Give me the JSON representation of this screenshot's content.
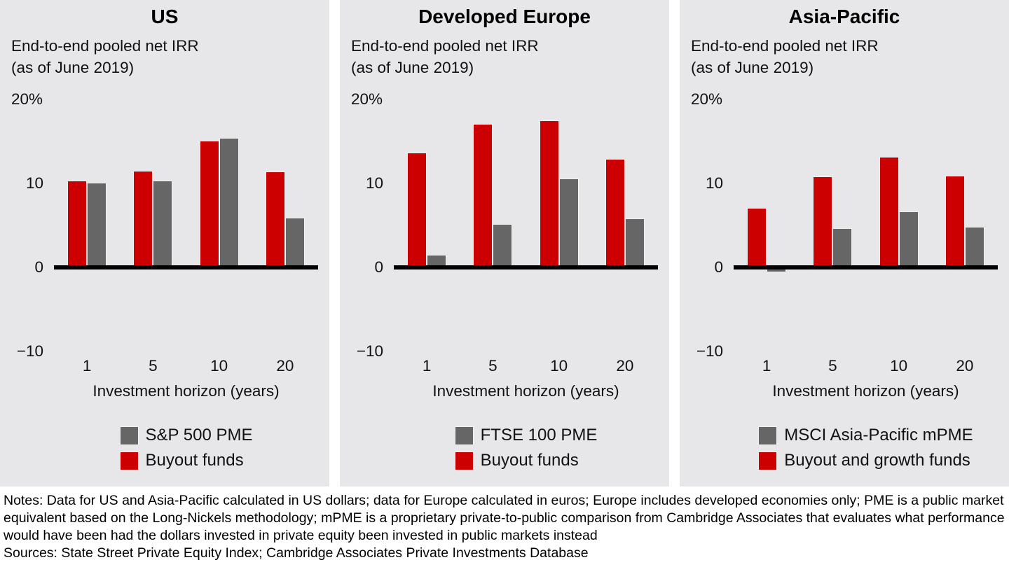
{
  "colors": {
    "buyout_red": "#cc0000",
    "pme_gray": "#666666",
    "panel_bg": "#e7e7e9",
    "axis_black": "#000000",
    "page_bg": "#ffffff"
  },
  "chart_data": [
    {
      "type": "bar",
      "title": "US",
      "subtitle": "End-to-end pooled net IRR\n(as of June 2019)",
      "xlabel": "Investment horizon (years)",
      "categories": [
        "1",
        "5",
        "10",
        "20"
      ],
      "series": [
        {
          "name": "Buyout funds",
          "color": "#cc0000",
          "values": [
            10.3,
            11.5,
            15.1,
            11.4
          ]
        },
        {
          "name": "S&P 500 PME",
          "color": "#666666",
          "values": [
            10.1,
            10.3,
            15.4,
            5.9
          ]
        }
      ],
      "legend": [
        {
          "label": "S&P 500 PME",
          "color": "#666666"
        },
        {
          "label": "Buyout funds",
          "color": "#cc0000"
        }
      ],
      "ylim": [
        -10,
        20
      ],
      "yticks": [
        20,
        10,
        0,
        -10
      ],
      "ytick_labels": [
        "20%",
        "10",
        "0",
        "−10"
      ],
      "grid": false,
      "legend_position": "bottom-center"
    },
    {
      "type": "bar",
      "title": "Developed Europe",
      "subtitle": "End-to-end pooled net IRR\n(as of June 2019)",
      "xlabel": "Investment horizon (years)",
      "categories": [
        "1",
        "5",
        "10",
        "20"
      ],
      "series": [
        {
          "name": "Buyout funds",
          "color": "#cc0000",
          "values": [
            13.7,
            17.1,
            17.5,
            12.9
          ]
        },
        {
          "name": "FTSE 100 PME",
          "color": "#666666",
          "values": [
            1.5,
            5.2,
            10.6,
            5.8
          ]
        }
      ],
      "legend": [
        {
          "label": "FTSE 100 PME",
          "color": "#666666"
        },
        {
          "label": "Buyout funds",
          "color": "#cc0000"
        }
      ],
      "ylim": [
        -10,
        20
      ],
      "yticks": [
        20,
        10,
        0,
        -10
      ],
      "ytick_labels": [
        "20%",
        "10",
        "0",
        "−10"
      ],
      "grid": false,
      "legend_position": "bottom-center"
    },
    {
      "type": "bar",
      "title": "Asia-Pacific",
      "subtitle": "End-to-end pooled net IRR\n(as of June 2019)",
      "xlabel": "Investment horizon (years)",
      "categories": [
        "1",
        "5",
        "10",
        "20"
      ],
      "series": [
        {
          "name": "Buyout and growth funds",
          "color": "#cc0000",
          "values": [
            7.1,
            10.8,
            13.2,
            10.9
          ]
        },
        {
          "name": "MSCI Asia-Pacific mPME",
          "color": "#666666",
          "values": [
            -0.6,
            4.7,
            6.7,
            4.8
          ]
        }
      ],
      "legend": [
        {
          "label": "MSCI Asia-Pacific mPME",
          "color": "#666666"
        },
        {
          "label": "Buyout and growth funds",
          "color": "#cc0000"
        }
      ],
      "ylim": [
        -10,
        20
      ],
      "yticks": [
        20,
        10,
        0,
        -10
      ],
      "ytick_labels": [
        "20%",
        "10",
        "0",
        "−10"
      ],
      "grid": false,
      "legend_position": "bottom-center"
    }
  ],
  "notes": "Notes: Data for US and Asia-Pacific calculated in US dollars; data for Europe calculated in euros; Europe includes developed economies only; PME is a public market equivalent based on the Long-Nickels methodology; mPME is a proprietary private-to-public comparison from Cambridge Associates that evaluates what performance would have been had the dollars invested in private equity been invested in public markets instead",
  "sources": "Sources: State Street Private Equity Index; Cambridge Associates Private Investments Database"
}
